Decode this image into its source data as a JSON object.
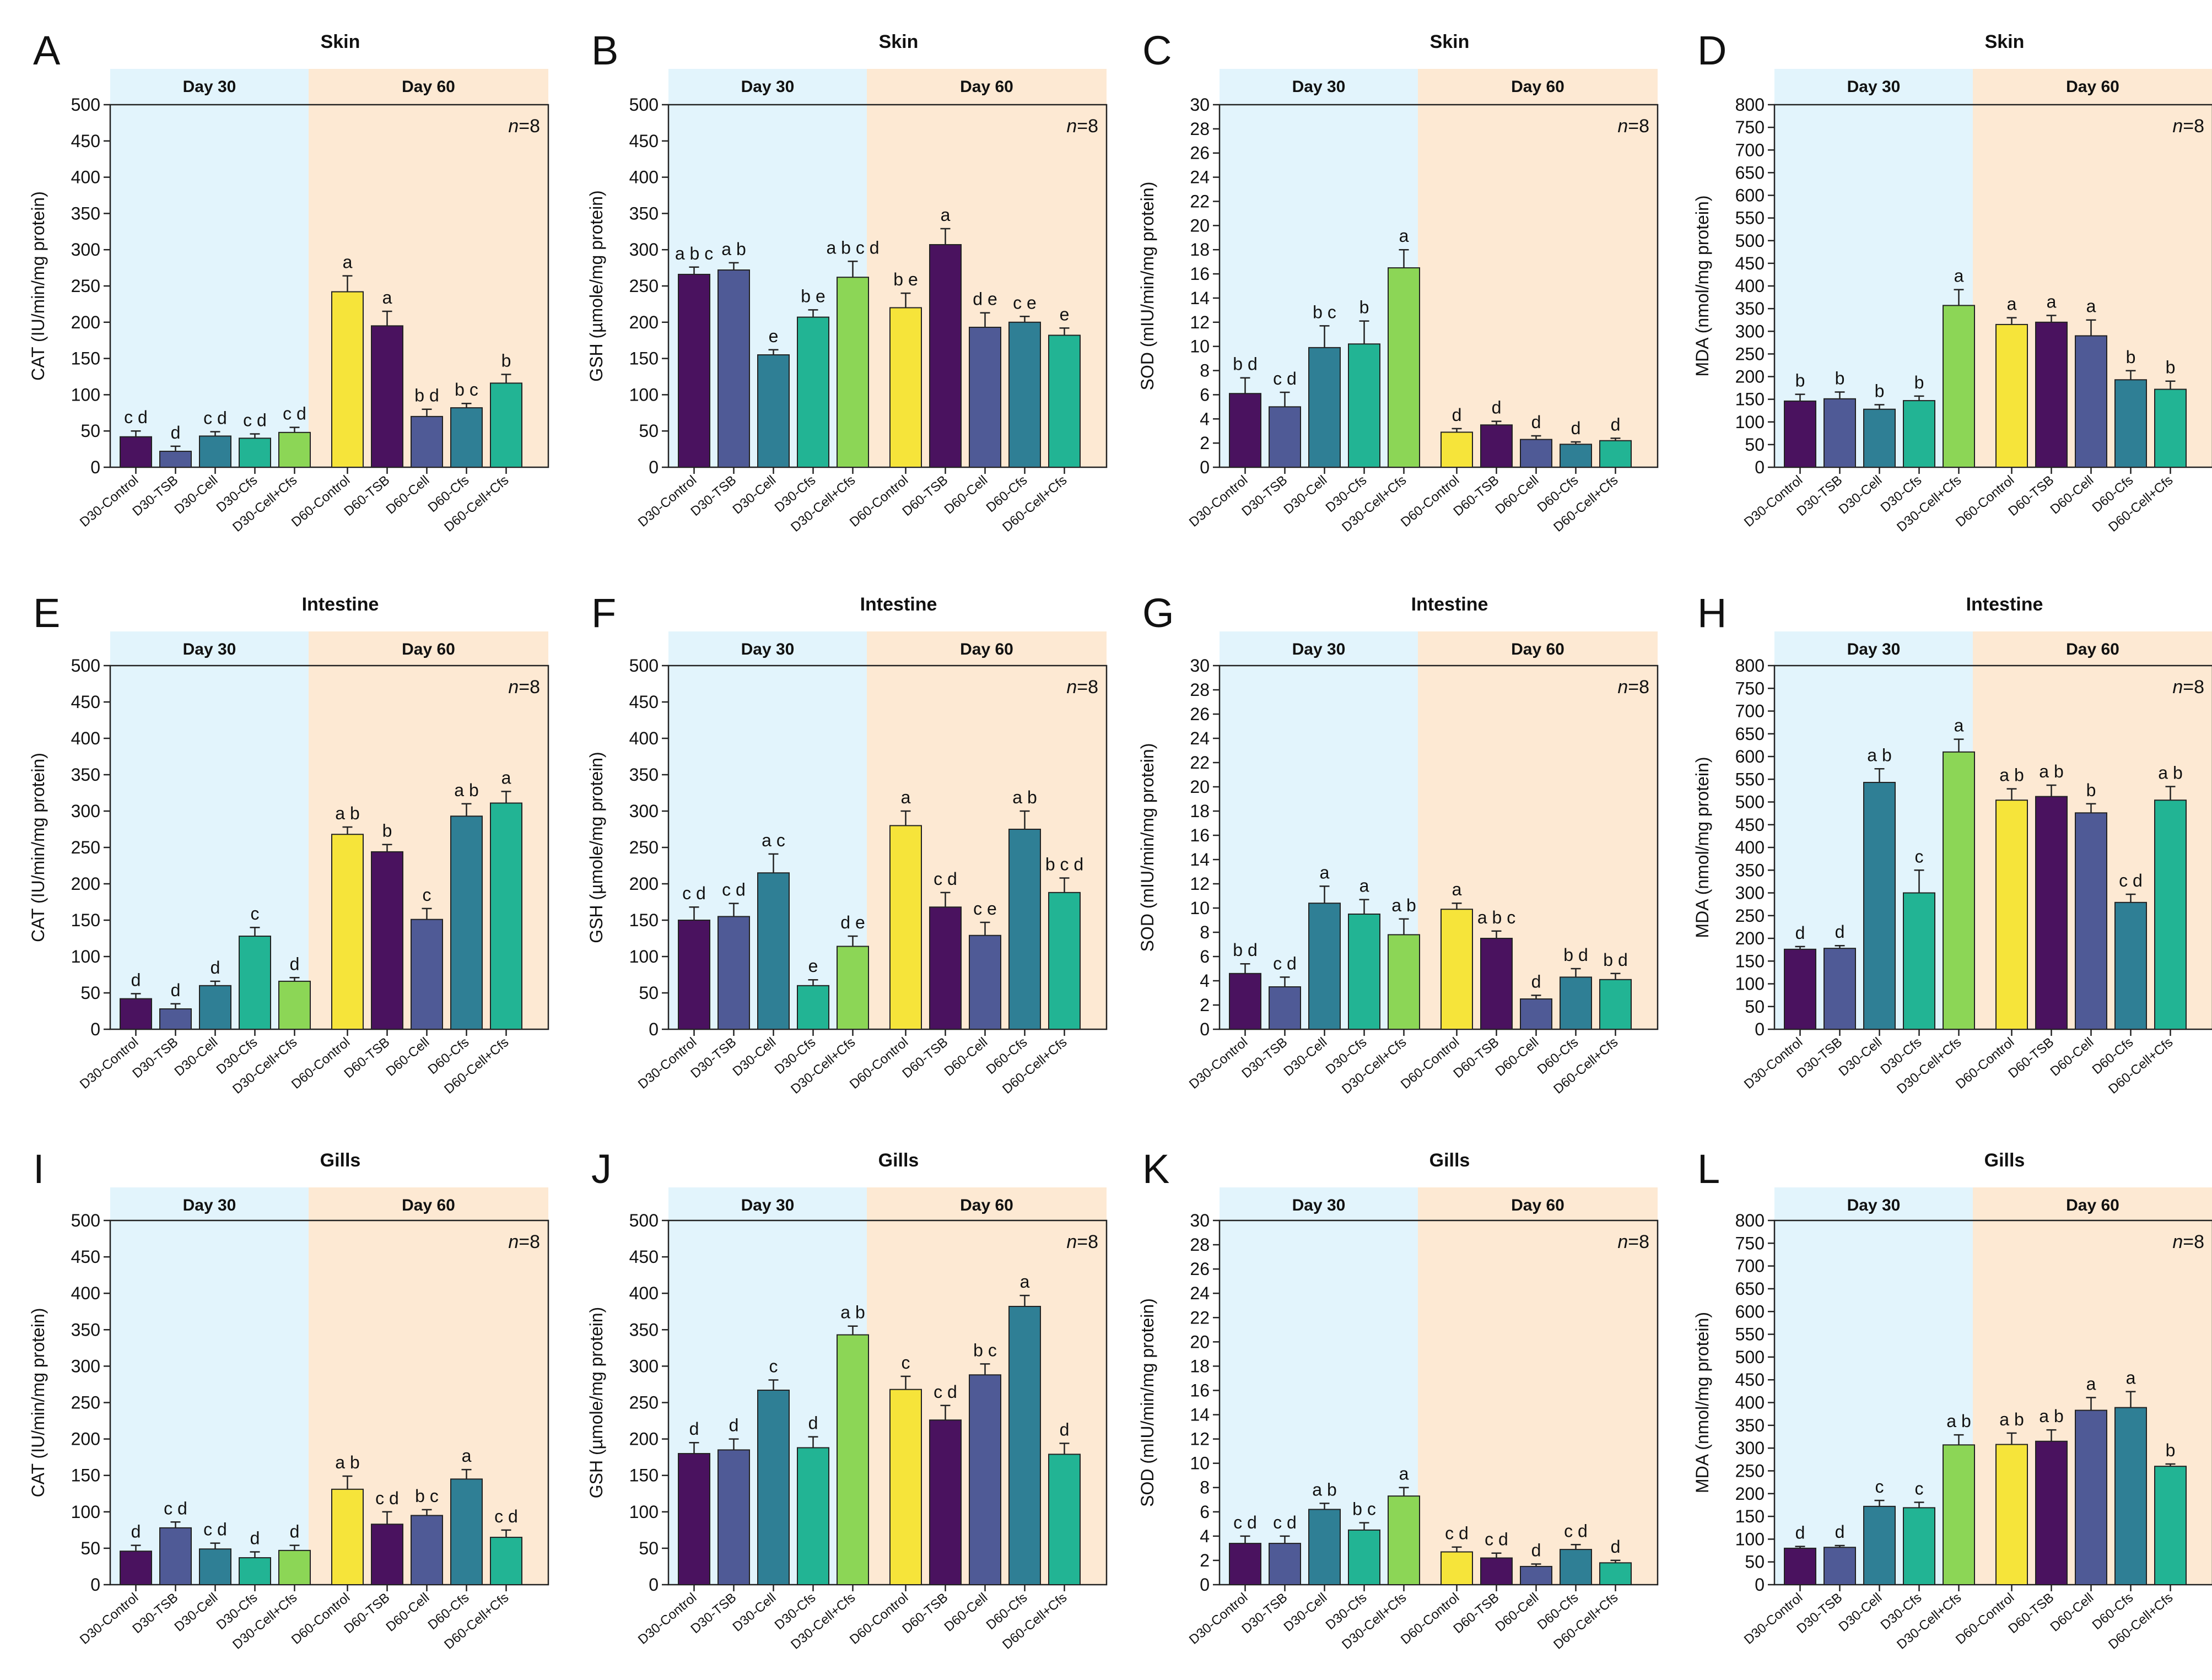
{
  "figure": {
    "colors": {
      "day30_bg": "#e2f4fc",
      "day60_bg": "#fde9d3",
      "series": [
        "#4a125f",
        "#4f5a96",
        "#2f7f95",
        "#22b494",
        "#8cd656",
        "#f6e43a",
        "#4a125f",
        "#4f5a96",
        "#2f7f95",
        "#22b494"
      ]
    }
  },
  "chart_data": [
    {
      "panel": "A",
      "title": "Skin",
      "type": "bar",
      "ylabel": "CAT (IU/min/mg protein)",
      "ylim": [
        0,
        500
      ],
      "ytick_step": 50,
      "ticks": [
        "0",
        "50",
        "100",
        "150",
        "200",
        "250",
        "300",
        "350",
        "400",
        "450",
        "500"
      ],
      "bands": [
        "Day 30",
        "Day 60"
      ],
      "n_label": "n",
      "n_value": "=8",
      "categories": [
        "D30-Control",
        "D30-TSB",
        "D30-Cell",
        "D30-Cfs",
        "D30-Cell+Cfs",
        "D60-Control",
        "D60-TSB",
        "D60-Cell",
        "D60-Cfs",
        "D60-Cell+Cfs"
      ],
      "values": [
        42,
        22,
        43,
        40,
        48,
        242,
        195,
        70,
        82,
        116
      ],
      "errors": [
        8,
        7,
        6,
        6,
        7,
        22,
        20,
        10,
        6,
        12
      ],
      "letters": [
        "c d",
        "d",
        "c d",
        "c d",
        "c d",
        "a",
        "a",
        "b d",
        "b c",
        "b"
      ]
    },
    {
      "panel": "B",
      "title": "Skin",
      "type": "bar",
      "ylabel": "GSH (µmole/mg protein)",
      "ylim": [
        0,
        500
      ],
      "ytick_step": 50,
      "ticks": [
        "0",
        "50",
        "100",
        "150",
        "200",
        "250",
        "300",
        "350",
        "400",
        "450",
        "500"
      ],
      "bands": [
        "Day 30",
        "Day 60"
      ],
      "n_label": "n",
      "n_value": "=8",
      "categories": [
        "D30-Control",
        "D30-TSB",
        "D30-Cell",
        "D30-Cfs",
        "D30-Cell+Cfs",
        "D60-Control",
        "D60-TSB",
        "D60-Cell",
        "D60-Cfs",
        "D60-Cell+Cfs"
      ],
      "values": [
        266,
        272,
        155,
        207,
        262,
        220,
        307,
        193,
        200,
        182
      ],
      "errors": [
        10,
        10,
        7,
        10,
        22,
        20,
        22,
        20,
        8,
        10
      ],
      "letters": [
        "a b c",
        "a b",
        "e",
        "b e",
        "a b c d",
        "b e",
        "a",
        "d e",
        "c e",
        "e"
      ]
    },
    {
      "panel": "C",
      "title": "Skin",
      "type": "bar",
      "ylabel": "SOD (mIU/min/mg protein)",
      "ylim": [
        0,
        30
      ],
      "ytick_step": 2,
      "ticks": [
        "0",
        "2",
        "4",
        "6",
        "8",
        "10",
        "12",
        "14",
        "16",
        "18",
        "20",
        "22",
        "24",
        "26",
        "28",
        "30"
      ],
      "bands": [
        "Day 30",
        "Day 60"
      ],
      "n_label": "n",
      "n_value": "=8",
      "categories": [
        "D30-Control",
        "D30-TSB",
        "D30-Cell",
        "D30-Cfs",
        "D30-Cell+Cfs",
        "D60-Control",
        "D60-TSB",
        "D60-Cell",
        "D60-Cfs",
        "D60-Cell+Cfs"
      ],
      "values": [
        6.1,
        5.0,
        9.9,
        10.2,
        16.5,
        2.9,
        3.5,
        2.3,
        1.9,
        2.2
      ],
      "errors": [
        1.3,
        1.2,
        1.8,
        1.9,
        1.5,
        0.3,
        0.3,
        0.3,
        0.2,
        0.2
      ],
      "letters": [
        "b d",
        "c d",
        "b c",
        "b",
        "a",
        "d",
        "d",
        "d",
        "d",
        "d"
      ]
    },
    {
      "panel": "D",
      "title": "Skin",
      "type": "bar",
      "ylabel": "MDA (nmol/mg protein)",
      "ylim": [
        0,
        800
      ],
      "ytick_step": 50,
      "ticks": [
        "0",
        "50",
        "100",
        "150",
        "200",
        "250",
        "300",
        "350",
        "400",
        "450",
        "500",
        "550",
        "600",
        "650",
        "700",
        "750",
        "800"
      ],
      "bands": [
        "Day 30",
        "Day 60"
      ],
      "n_label": "n",
      "n_value": "=8",
      "categories": [
        "D30-Control",
        "D30-TSB",
        "D30-Cell",
        "D30-Cfs",
        "D30-Cell+Cfs",
        "D60-Control",
        "D60-TSB",
        "D60-Cell",
        "D60-Cfs",
        "D60-Cell+Cfs"
      ],
      "values": [
        146,
        151,
        128,
        147,
        357,
        315,
        320,
        290,
        193,
        172
      ],
      "errors": [
        15,
        15,
        10,
        10,
        35,
        15,
        15,
        35,
        20,
        18
      ],
      "letters": [
        "b",
        "b",
        "b",
        "b",
        "a",
        "a",
        "a",
        "a",
        "b",
        "b"
      ]
    },
    {
      "panel": "E",
      "title": "Intestine",
      "type": "bar",
      "ylabel": "CAT (IU/min/mg protein)",
      "ylim": [
        0,
        500
      ],
      "ytick_step": 50,
      "ticks": [
        "0",
        "50",
        "100",
        "150",
        "200",
        "250",
        "300",
        "350",
        "400",
        "450",
        "500"
      ],
      "bands": [
        "Day 30",
        "Day 60"
      ],
      "n_label": "n",
      "n_value": "=8",
      "categories": [
        "D30-Control",
        "D30-TSB",
        "D30-Cell",
        "D30-Cfs",
        "D30-Cell+Cfs",
        "D60-Control",
        "D60-TSB",
        "D60-Cell",
        "D60-Cfs",
        "D60-Cell+Cfs"
      ],
      "values": [
        42,
        28,
        60,
        128,
        66,
        268,
        244,
        151,
        293,
        311
      ],
      "errors": [
        7,
        7,
        6,
        12,
        5,
        10,
        10,
        15,
        17,
        16
      ],
      "letters": [
        "d",
        "d",
        "d",
        "c",
        "d",
        "a b",
        "b",
        "c",
        "a b",
        "a"
      ]
    },
    {
      "panel": "F",
      "title": "Intestine",
      "type": "bar",
      "ylabel": "GSH (µmole/mg protein)",
      "ylim": [
        0,
        500
      ],
      "ytick_step": 50,
      "ticks": [
        "0",
        "50",
        "100",
        "150",
        "200",
        "250",
        "300",
        "350",
        "400",
        "450",
        "500"
      ],
      "bands": [
        "Day 30",
        "Day 60"
      ],
      "n_label": "n",
      "n_value": "=8",
      "categories": [
        "D30-Control",
        "D30-TSB",
        "D30-Cell",
        "D30-Cfs",
        "D30-Cell+Cfs",
        "D60-Control",
        "D60-TSB",
        "D60-Cell",
        "D60-Cfs",
        "D60-Cell+Cfs"
      ],
      "values": [
        150,
        155,
        215,
        60,
        114,
        280,
        168,
        129,
        275,
        188
      ],
      "errors": [
        18,
        18,
        26,
        8,
        14,
        20,
        20,
        18,
        25,
        20
      ],
      "letters": [
        "c d",
        "c d",
        "a c",
        "e",
        "d e",
        "a",
        "c d",
        "c e",
        "a b",
        "b c d"
      ]
    },
    {
      "panel": "G",
      "title": "Intestine",
      "type": "bar",
      "ylabel": "SOD (mIU/min/mg protein)",
      "ylim": [
        0,
        30
      ],
      "ytick_step": 2,
      "ticks": [
        "0",
        "2",
        "4",
        "6",
        "8",
        "10",
        "12",
        "14",
        "16",
        "18",
        "20",
        "22",
        "24",
        "26",
        "28",
        "30"
      ],
      "bands": [
        "Day 30",
        "Day 60"
      ],
      "n_label": "n",
      "n_value": "=8",
      "categories": [
        "D30-Control",
        "D30-TSB",
        "D30-Cell",
        "D30-Cfs",
        "D30-Cell+Cfs",
        "D60-Control",
        "D60-TSB",
        "D60-Cell",
        "D60-Cfs",
        "D60-Cell+Cfs"
      ],
      "values": [
        4.6,
        3.5,
        10.4,
        9.5,
        7.8,
        9.9,
        7.5,
        2.5,
        4.3,
        4.1
      ],
      "errors": [
        0.8,
        0.8,
        1.4,
        1.2,
        1.3,
        0.5,
        0.6,
        0.3,
        0.7,
        0.5
      ],
      "letters": [
        "b d",
        "c d",
        "a",
        "a",
        "a b",
        "a",
        "a b c",
        "d",
        "b d",
        "b d"
      ]
    },
    {
      "panel": "H",
      "title": "Intestine",
      "type": "bar",
      "ylabel": "MDA (nmol/mg protein)",
      "ylim": [
        0,
        800
      ],
      "ytick_step": 50,
      "ticks": [
        "0",
        "50",
        "100",
        "150",
        "200",
        "250",
        "300",
        "350",
        "400",
        "450",
        "500",
        "550",
        "600",
        "650",
        "700",
        "750",
        "800"
      ],
      "bands": [
        "Day 30",
        "Day 60"
      ],
      "n_label": "n",
      "n_value": "=8",
      "categories": [
        "D30-Control",
        "D30-TSB",
        "D30-Cell",
        "D30-Cfs",
        "D30-Cell+Cfs",
        "D60-Control",
        "D60-TSB",
        "D60-Cell",
        "D60-Cfs",
        "D60-Cell+Cfs"
      ],
      "values": [
        176,
        178,
        543,
        300,
        610,
        504,
        512,
        476,
        279,
        504
      ],
      "errors": [
        6,
        6,
        30,
        50,
        28,
        25,
        25,
        20,
        18,
        30
      ],
      "letters": [
        "d",
        "d",
        "a b",
        "c",
        "a",
        "a b",
        "a b",
        "b",
        "c d",
        "a b"
      ]
    },
    {
      "panel": "I",
      "title": "Gills",
      "type": "bar",
      "ylabel": "CAT (IU/min/mg protein)",
      "ylim": [
        0,
        500
      ],
      "ytick_step": 50,
      "ticks": [
        "0",
        "50",
        "100",
        "150",
        "200",
        "250",
        "300",
        "350",
        "400",
        "450",
        "500"
      ],
      "bands": [
        "Day 30",
        "Day 60"
      ],
      "n_label": "n",
      "n_value": "=8",
      "categories": [
        "D30-Control",
        "D30-TSB",
        "D30-Cell",
        "D30-Cfs",
        "D30-Cell+Cfs",
        "D60-Control",
        "D60-TSB",
        "D60-Cell",
        "D60-Cfs",
        "D60-Cell+Cfs"
      ],
      "values": [
        46,
        78,
        49,
        37,
        47,
        131,
        83,
        95,
        145,
        65
      ],
      "errors": [
        8,
        8,
        8,
        8,
        7,
        18,
        17,
        8,
        13,
        10
      ],
      "letters": [
        "d",
        "c d",
        "c d",
        "d",
        "d",
        "a b",
        "c d",
        "b c",
        "a",
        "c d"
      ]
    },
    {
      "panel": "J",
      "title": "Gills",
      "type": "bar",
      "ylabel": "GSH (µmole/mg protein)",
      "ylim": [
        0,
        500
      ],
      "ytick_step": 50,
      "ticks": [
        "0",
        "50",
        "100",
        "150",
        "200",
        "250",
        "300",
        "350",
        "400",
        "450",
        "500"
      ],
      "bands": [
        "Day 30",
        "Day 60"
      ],
      "n_label": "n",
      "n_value": "=8",
      "categories": [
        "D30-Control",
        "D30-TSB",
        "D30-Cell",
        "D30-Cfs",
        "D30-Cell+Cfs",
        "D60-Control",
        "D60-TSB",
        "D60-Cell",
        "D60-Cfs",
        "D60-Cell+Cfs"
      ],
      "values": [
        180,
        185,
        267,
        188,
        343,
        268,
        226,
        288,
        382,
        179
      ],
      "errors": [
        15,
        15,
        14,
        15,
        12,
        18,
        20,
        15,
        15,
        15
      ],
      "letters": [
        "d",
        "d",
        "c",
        "d",
        "a b",
        "c",
        "c d",
        "b c",
        "a",
        "d"
      ]
    },
    {
      "panel": "K",
      "title": "Gills",
      "type": "bar",
      "ylabel": "SOD (mIU/min/mg protein)",
      "ylim": [
        0,
        30
      ],
      "ytick_step": 2,
      "ticks": [
        "0",
        "2",
        "4",
        "6",
        "8",
        "10",
        "12",
        "14",
        "16",
        "18",
        "20",
        "22",
        "24",
        "26",
        "28",
        "30"
      ],
      "bands": [
        "Day 30",
        "Day 60"
      ],
      "n_label": "n",
      "n_value": "=8",
      "categories": [
        "D30-Control",
        "D30-TSB",
        "D30-Cell",
        "D30-Cfs",
        "D30-Cell+Cfs",
        "D60-Control",
        "D60-TSB",
        "D60-Cell",
        "D60-Cfs",
        "D60-Cell+Cfs"
      ],
      "values": [
        3.4,
        3.4,
        6.2,
        4.5,
        7.3,
        2.7,
        2.2,
        1.5,
        2.9,
        1.8
      ],
      "errors": [
        0.6,
        0.6,
        0.5,
        0.6,
        0.7,
        0.4,
        0.4,
        0.2,
        0.4,
        0.2
      ],
      "letters": [
        "c d",
        "c d",
        "a b",
        "b c",
        "a",
        "c d",
        "c d",
        "d",
        "c d",
        "d"
      ]
    },
    {
      "panel": "L",
      "title": "Gills",
      "type": "bar",
      "ylabel": "MDA (nmol/mg protein)",
      "ylim": [
        0,
        800
      ],
      "ytick_step": 50,
      "ticks": [
        "0",
        "50",
        "100",
        "150",
        "200",
        "250",
        "300",
        "350",
        "400",
        "450",
        "500",
        "550",
        "600",
        "650",
        "700",
        "750",
        "800"
      ],
      "bands": [
        "Day 30",
        "Day 60"
      ],
      "n_label": "n",
      "n_value": "=8",
      "categories": [
        "D30-Control",
        "D30-TSB",
        "D30-Cell",
        "D30-Cfs",
        "D30-Cell+Cfs",
        "D60-Control",
        "D60-TSB",
        "D60-Cell",
        "D60-Cfs",
        "D60-Cell+Cfs"
      ],
      "values": [
        80,
        82,
        172,
        169,
        307,
        308,
        315,
        383,
        389,
        260
      ],
      "errors": [
        4,
        4,
        13,
        12,
        22,
        25,
        25,
        28,
        35,
        5
      ],
      "letters": [
        "d",
        "d",
        "c",
        "c",
        "a b",
        "a b",
        "a b",
        "a",
        "a",
        "b"
      ]
    }
  ]
}
